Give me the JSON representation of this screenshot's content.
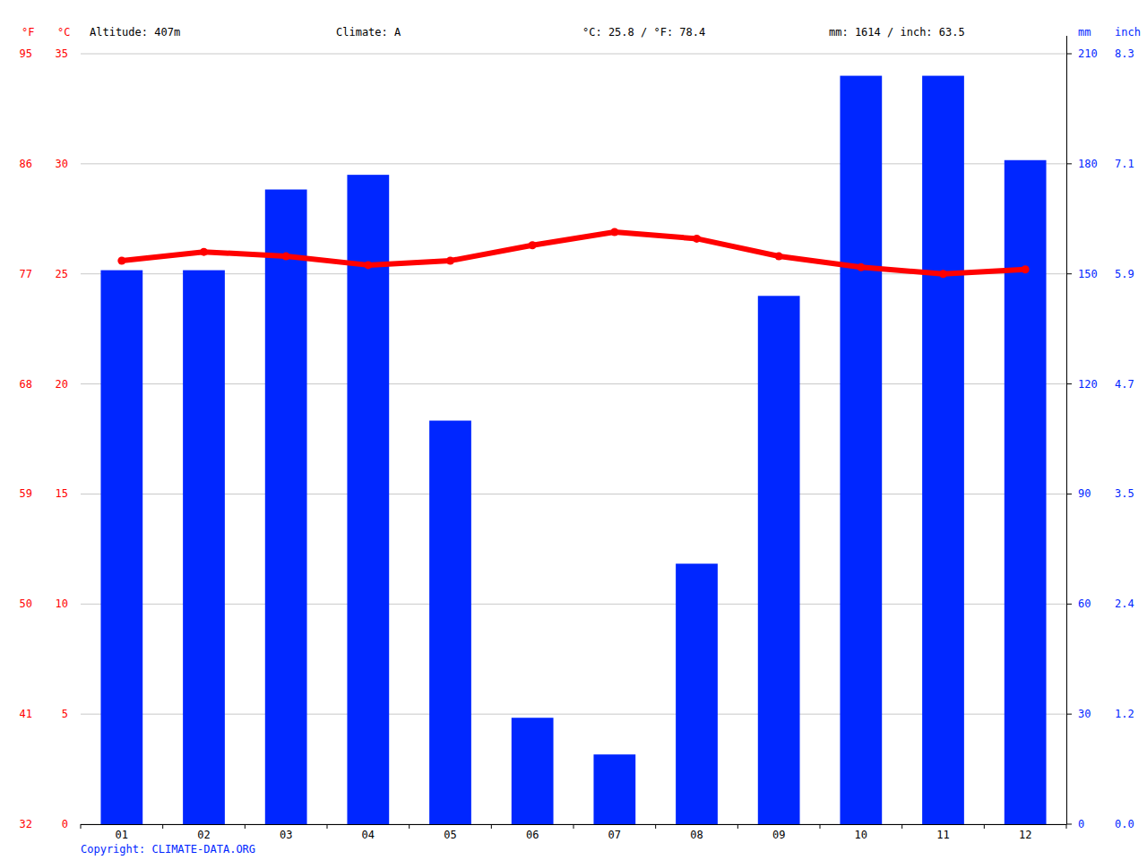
{
  "chart_data": {
    "type": "bar",
    "annotations": [
      "Altitude: 407m",
      "Climate: A",
      "°C: 25.8 / °F: 78.4",
      "mm: 1614 / inch: 63.5"
    ],
    "source": "Copyright: CLIMATE-DATA.ORG",
    "y_label": "°C",
    "y_fahrenheit_label": "°F",
    "y2_label": "mm",
    "y2_inch_label": "inch",
    "categories": [
      "01",
      "02",
      "03",
      "04",
      "05",
      "06",
      "07",
      "08",
      "09",
      "10",
      "11",
      "12"
    ],
    "series": [
      {
        "type": "bar",
        "color": "#0026ff",
        "axis": "y2",
        "values": [
          151,
          151,
          173,
          177,
          110,
          29,
          19,
          71,
          144,
          204,
          204,
          181
        ]
      },
      {
        "type": "line",
        "color": "#ff0000",
        "marker": "circle",
        "values": [
          25.6,
          26.0,
          25.8,
          25.4,
          25.6,
          26.3,
          26.9,
          26.6,
          25.8,
          25.3,
          25.0,
          25.2
        ]
      }
    ],
    "ylim": [
      0,
      35
    ],
    "yticks": [
      0,
      5,
      10,
      15,
      20,
      25,
      30,
      35
    ],
    "y_fahrenheit_ticks": [
      {
        "value": 0,
        "label": "32"
      },
      {
        "value": 5,
        "label": "41"
      },
      {
        "value": 10,
        "label": "50"
      },
      {
        "value": 15,
        "label": "59"
      },
      {
        "value": 20,
        "label": "68"
      },
      {
        "value": 25,
        "label": "77"
      },
      {
        "value": 30,
        "label": "86"
      },
      {
        "value": 35,
        "label": "95"
      }
    ],
    "y2lim": [
      0,
      210
    ],
    "y2ticks": [
      0,
      30,
      60,
      90,
      120,
      150,
      180,
      210
    ],
    "y2_inch_ticks": [
      {
        "value": 0,
        "label": "0.0"
      },
      {
        "value": 30,
        "label": "1.2"
      },
      {
        "value": 60,
        "label": "2.4"
      },
      {
        "value": 90,
        "label": "3.5"
      },
      {
        "value": 120,
        "label": "4.7"
      },
      {
        "value": 150,
        "label": "5.9"
      },
      {
        "value": 180,
        "label": "7.1"
      },
      {
        "value": 210,
        "label": "8.3"
      }
    ],
    "grid": true
  }
}
